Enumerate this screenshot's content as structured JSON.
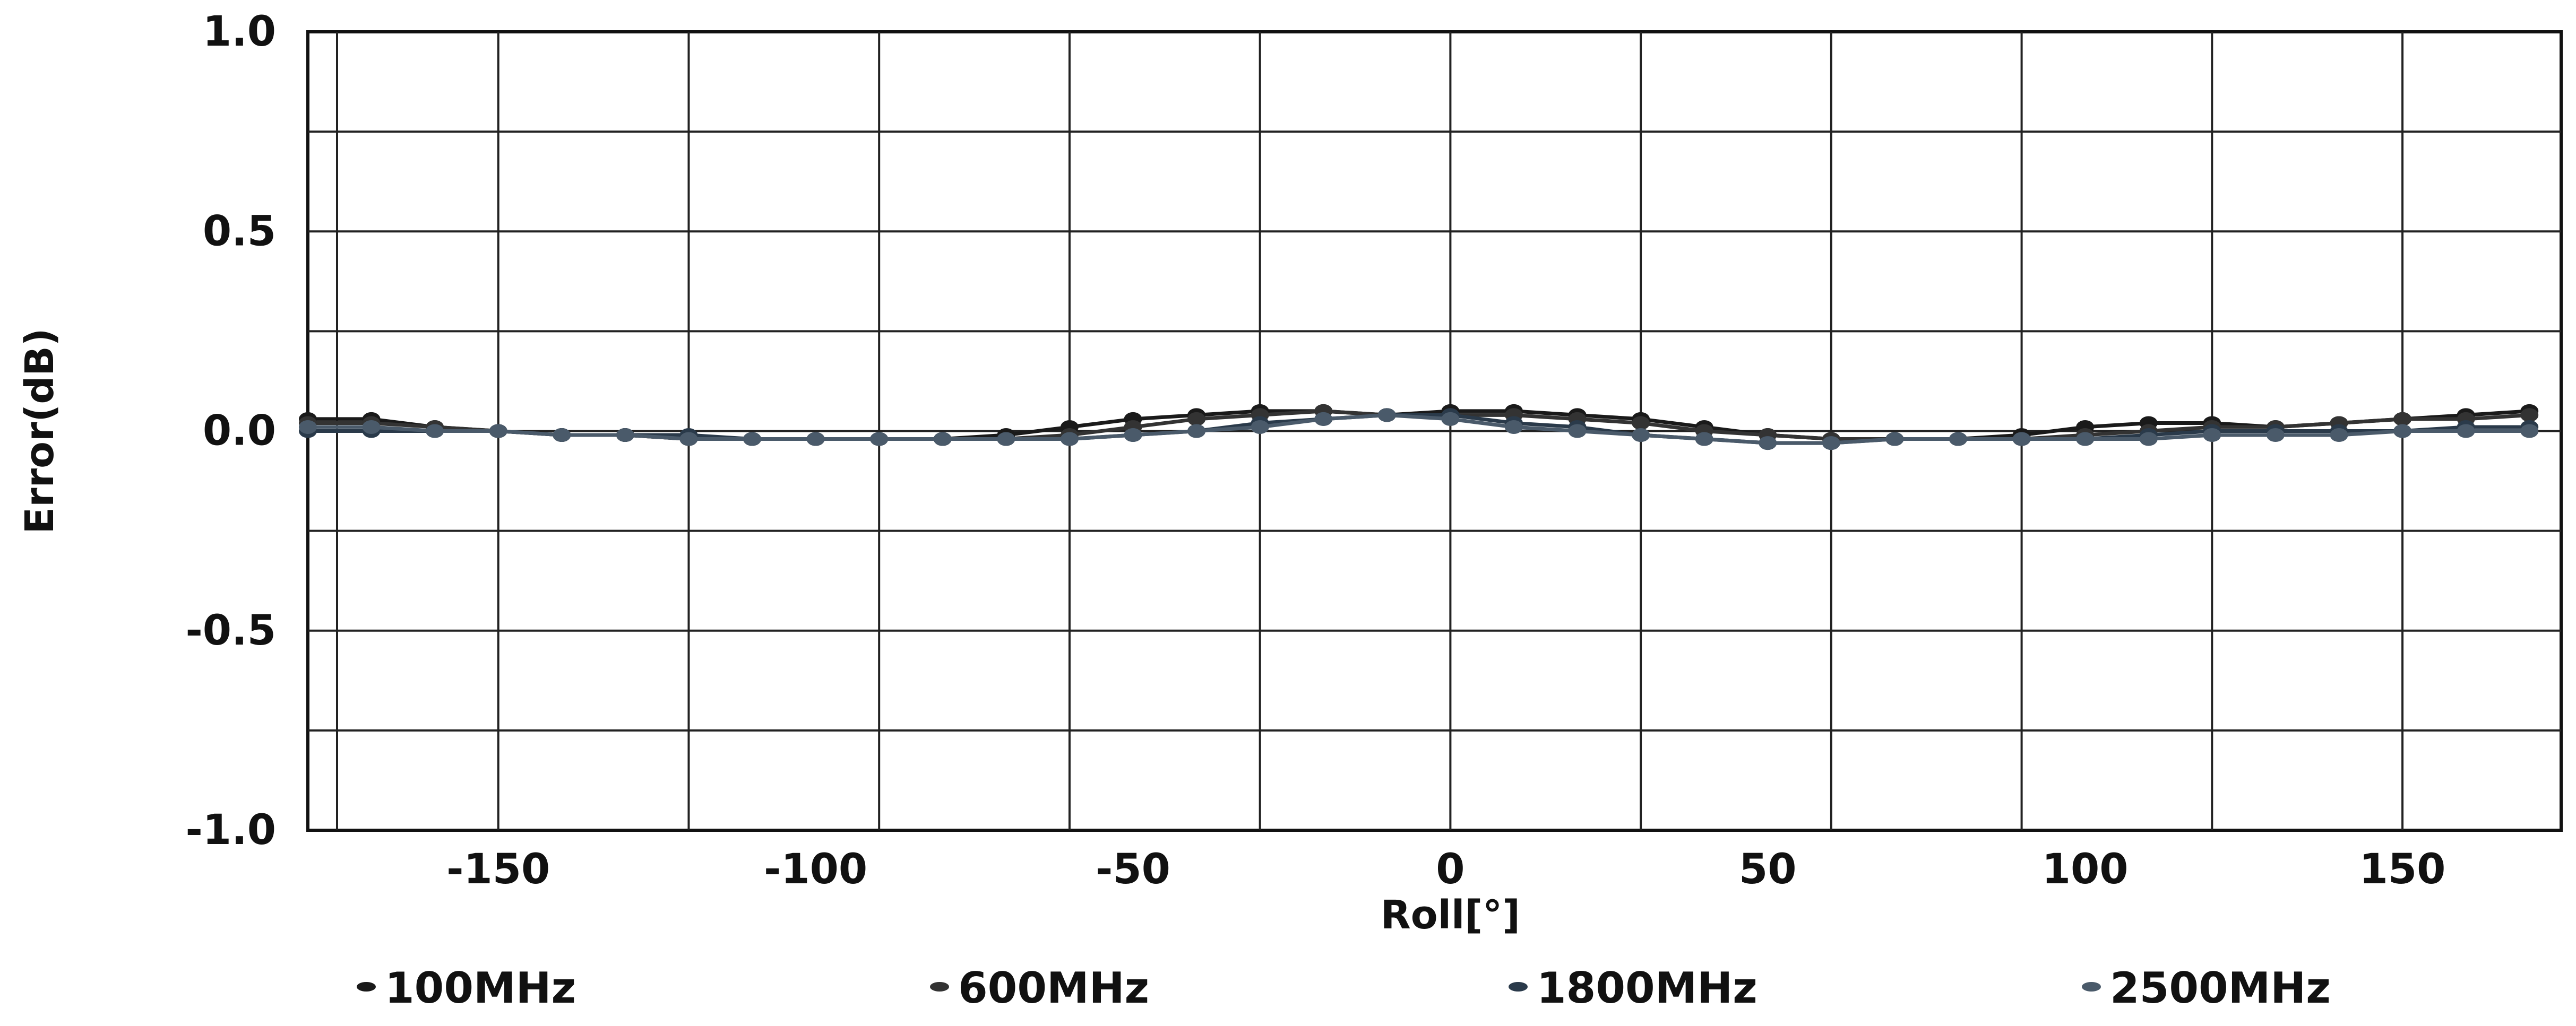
{
  "chart_data": {
    "type": "line",
    "title": "",
    "xlabel": "Roll[°]",
    "ylabel": "Error(dB)",
    "xlim": [
      -180,
      175
    ],
    "ylim": [
      -1.0,
      1.0
    ],
    "x_ticks": [
      -150,
      -100,
      -50,
      0,
      50,
      100,
      150
    ],
    "x_tick_labels": [
      "-150",
      "-100",
      "-50",
      "0",
      "50",
      "100",
      "150"
    ],
    "y_ticks": [
      1.0,
      0.5,
      0.0,
      -0.5,
      -1.0
    ],
    "y_tick_labels": [
      "1.0",
      "0.5",
      "0.0",
      "-0.5",
      "-1.0"
    ],
    "grid": true,
    "legend_position": "bottom",
    "x": [
      -180,
      -170,
      -160,
      -150,
      -140,
      -130,
      -120,
      -110,
      -100,
      -90,
      -80,
      -70,
      -60,
      -50,
      -40,
      -30,
      -20,
      -10,
      0,
      10,
      20,
      30,
      40,
      50,
      60,
      70,
      80,
      90,
      100,
      110,
      120,
      130,
      140,
      150,
      160,
      170
    ],
    "series": [
      {
        "name": "100MHz",
        "color": "#1a1a1a",
        "values": [
          0.03,
          0.03,
          0.01,
          0.0,
          -0.01,
          -0.01,
          -0.02,
          -0.02,
          -0.02,
          -0.02,
          -0.02,
          -0.01,
          0.01,
          0.03,
          0.04,
          0.05,
          0.05,
          0.04,
          0.05,
          0.05,
          0.04,
          0.03,
          0.01,
          -0.01,
          -0.02,
          -0.02,
          -0.02,
          -0.01,
          0.01,
          0.02,
          0.02,
          0.01,
          0.02,
          0.03,
          0.04,
          0.05
        ]
      },
      {
        "name": "600MHz",
        "color": "#333333",
        "values": [
          0.02,
          0.02,
          0.01,
          0.0,
          -0.01,
          -0.01,
          -0.02,
          -0.02,
          -0.02,
          -0.02,
          -0.02,
          -0.02,
          -0.01,
          0.01,
          0.03,
          0.04,
          0.05,
          0.04,
          0.04,
          0.04,
          0.03,
          0.02,
          0.0,
          -0.01,
          -0.02,
          -0.02,
          -0.02,
          -0.02,
          -0.01,
          0.0,
          0.01,
          0.01,
          0.02,
          0.03,
          0.03,
          0.04
        ]
      },
      {
        "name": "1800MHz",
        "color": "#2a3a4a",
        "values": [
          0.0,
          0.0,
          0.0,
          0.0,
          -0.01,
          -0.01,
          -0.01,
          -0.02,
          -0.02,
          -0.02,
          -0.02,
          -0.02,
          -0.02,
          -0.01,
          0.0,
          0.02,
          0.03,
          0.04,
          0.04,
          0.02,
          0.01,
          -0.01,
          -0.02,
          -0.03,
          -0.03,
          -0.02,
          -0.02,
          -0.02,
          -0.02,
          -0.01,
          0.0,
          0.0,
          0.0,
          0.0,
          0.01,
          0.01
        ]
      },
      {
        "name": "2500MHz",
        "color": "#4a5a6a",
        "values": [
          0.01,
          0.01,
          0.0,
          0.0,
          -0.01,
          -0.01,
          -0.02,
          -0.02,
          -0.02,
          -0.02,
          -0.02,
          -0.02,
          -0.02,
          -0.01,
          0.0,
          0.01,
          0.03,
          0.04,
          0.03,
          0.01,
          0.0,
          -0.01,
          -0.02,
          -0.03,
          -0.03,
          -0.02,
          -0.02,
          -0.02,
          -0.02,
          -0.02,
          -0.01,
          -0.01,
          -0.01,
          0.0,
          0.0,
          0.0
        ]
      }
    ]
  }
}
